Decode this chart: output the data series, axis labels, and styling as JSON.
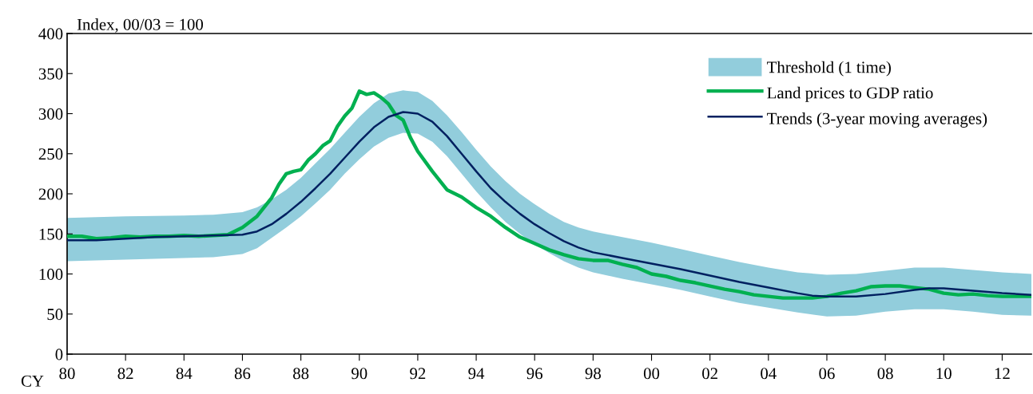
{
  "chart_data": {
    "type": "line",
    "ylabel": "Index, 00/03 = 100",
    "xlabel": "CY",
    "xlim": [
      1980,
      2013
    ],
    "ylim": [
      0,
      400
    ],
    "xticks": [
      {
        "value": 1980,
        "label": "80"
      },
      {
        "value": 1982,
        "label": "82"
      },
      {
        "value": 1984,
        "label": "84"
      },
      {
        "value": 1986,
        "label": "86"
      },
      {
        "value": 1988,
        "label": "88"
      },
      {
        "value": 1990,
        "label": "90"
      },
      {
        "value": 1992,
        "label": "92"
      },
      {
        "value": 1994,
        "label": "94"
      },
      {
        "value": 1996,
        "label": "96"
      },
      {
        "value": 1998,
        "label": "98"
      },
      {
        "value": 2000,
        "label": "00"
      },
      {
        "value": 2002,
        "label": "02"
      },
      {
        "value": 2004,
        "label": "04"
      },
      {
        "value": 2006,
        "label": "06"
      },
      {
        "value": 2008,
        "label": "08"
      },
      {
        "value": 2010,
        "label": "10"
      },
      {
        "value": 2012,
        "label": "12"
      }
    ],
    "yticks": [
      0,
      50,
      100,
      150,
      200,
      250,
      300,
      350,
      400
    ],
    "grid": false,
    "legend": "top right",
    "marker": "none",
    "line_style": "solid",
    "series": [
      {
        "name": "Threshold (1 time)",
        "type": "area",
        "color": "#92cddc",
        "x": [
          1980,
          1982,
          1984,
          1985,
          1986,
          1986.5,
          1987,
          1987.5,
          1988,
          1988.5,
          1989,
          1989.5,
          1990,
          1990.5,
          1991,
          1991.5,
          1992,
          1992.5,
          1993,
          1993.5,
          1994,
          1994.5,
          1995,
          1995.5,
          1996,
          1996.5,
          1997,
          1997.5,
          1998,
          1999,
          2000,
          2001,
          2002,
          2003,
          2004,
          2005,
          2006,
          2007,
          2008,
          2009,
          2010,
          2011,
          2012,
          2013
        ],
        "values": [
          null,
          null,
          null,
          null,
          null,
          null,
          null,
          null,
          null,
          null,
          null,
          null,
          null,
          null,
          null,
          null,
          null,
          null,
          null,
          null,
          null,
          null,
          null,
          null,
          null,
          null,
          null,
          null,
          null,
          null,
          null,
          null,
          null,
          null,
          null,
          null,
          null,
          null,
          null,
          null,
          null,
          null,
          null,
          null
        ],
        "upper": [
          170,
          172,
          173,
          174,
          177,
          183,
          193,
          205,
          220,
          238,
          256,
          276,
          296,
          313,
          325,
          329,
          327,
          316,
          298,
          277,
          255,
          234,
          216,
          200,
          187,
          175,
          165,
          158,
          153,
          146,
          139,
          131,
          123,
          115,
          108,
          102,
          99,
          100,
          104,
          108,
          108,
          105,
          102,
          100
        ],
        "lower": [
          116,
          118,
          120,
          121,
          125,
          132,
          145,
          158,
          172,
          188,
          205,
          225,
          243,
          259,
          270,
          276,
          275,
          265,
          247,
          225,
          203,
          183,
          165,
          150,
          137,
          126,
          116,
          108,
          102,
          94,
          87,
          80,
          72,
          64,
          58,
          52,
          47,
          48,
          53,
          56,
          56,
          53,
          49,
          48
        ]
      },
      {
        "name": "Land prices to GDP ratio",
        "color": "#00b050",
        "x": [
          1980,
          1980.5,
          1981,
          1981.5,
          1982,
          1982.5,
          1983,
          1983.5,
          1984,
          1984.5,
          1985,
          1985.5,
          1986,
          1986.5,
          1987,
          1987.25,
          1987.5,
          1987.75,
          1988,
          1988.25,
          1988.5,
          1988.75,
          1989,
          1989.25,
          1989.5,
          1989.75,
          1990,
          1990.25,
          1990.5,
          1990.75,
          1991,
          1991.25,
          1991.5,
          1991.75,
          1992,
          1992.5,
          1993,
          1993.5,
          1994,
          1994.5,
          1995,
          1995.5,
          1996,
          1996.5,
          1997,
          1997.5,
          1998,
          1998.5,
          1999,
          1999.5,
          2000,
          2000.5,
          2001,
          2001.5,
          2002,
          2002.5,
          2003,
          2003.5,
          2004,
          2004.5,
          2005,
          2005.5,
          2006,
          2006.5,
          2007,
          2007.5,
          2008,
          2008.5,
          2009,
          2009.5,
          2010,
          2010.5,
          2011,
          2011.5,
          2012,
          2012.5,
          2013
        ],
        "values": [
          147,
          147,
          144,
          145,
          147,
          146,
          147,
          147,
          148,
          147,
          148,
          149,
          158,
          172,
          195,
          212,
          225,
          228,
          230,
          242,
          250,
          260,
          266,
          284,
          297,
          307,
          328,
          324,
          326,
          320,
          312,
          298,
          292,
          270,
          253,
          228,
          205,
          196,
          183,
          172,
          158,
          146,
          138,
          130,
          124,
          119,
          117,
          117,
          112,
          108,
          100,
          97,
          92,
          89,
          85,
          81,
          78,
          74,
          72,
          70,
          70,
          70,
          72,
          76,
          79,
          84,
          85,
          85,
          83,
          81,
          76,
          74,
          75,
          73,
          72,
          72,
          72
        ]
      },
      {
        "name": "Trends (3-year moving averages)",
        "color": "#002060",
        "x": [
          1980,
          1981,
          1982,
          1983,
          1984,
          1985,
          1986,
          1986.5,
          1987,
          1987.5,
          1988,
          1988.5,
          1989,
          1989.5,
          1990,
          1990.5,
          1991,
          1991.5,
          1992,
          1992.5,
          1993,
          1993.5,
          1994,
          1994.5,
          1995,
          1995.5,
          1996,
          1996.5,
          1997,
          1997.5,
          1998,
          1999,
          2000,
          2001,
          2002,
          2003,
          2004,
          2005,
          2005.5,
          2006,
          2007,
          2008,
          2009,
          2009.5,
          2010,
          2011,
          2012,
          2013
        ],
        "values": [
          142,
          142,
          144,
          146,
          147,
          148,
          149,
          153,
          162,
          175,
          190,
          207,
          225,
          245,
          265,
          283,
          296,
          302,
          300,
          290,
          272,
          250,
          228,
          207,
          190,
          175,
          162,
          151,
          141,
          133,
          127,
          120,
          113,
          106,
          98,
          90,
          83,
          76,
          73,
          72,
          72,
          75,
          80,
          82,
          82,
          79,
          76,
          74
        ]
      }
    ]
  }
}
